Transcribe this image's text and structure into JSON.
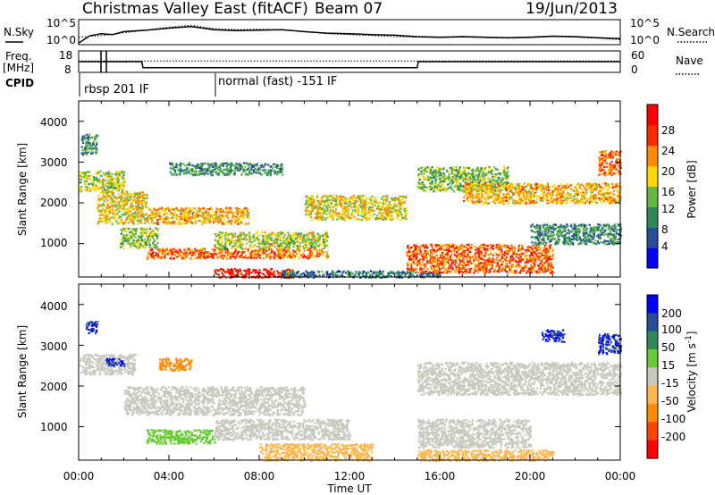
{
  "header": {
    "station": "Christmas Valley East (fitACF)",
    "beam": "Beam 07",
    "date": "19/Jun/2013"
  },
  "top_panels": {
    "nsky_label": "N.Sky",
    "nsearch_label": "N.Search",
    "noise_ticks_left": [
      "10^5",
      "10^0"
    ],
    "noise_ticks_right": [
      "10^5",
      "10^0"
    ],
    "freq_label_1": "Freq.",
    "freq_label_2": "[MHz]",
    "freq_ticks": [
      "18",
      "8"
    ],
    "nave_label": "Nave",
    "nave_ticks": [
      "60",
      "0"
    ],
    "cpid_label": "CPID",
    "cpid_entries": [
      "rbsp 201 IF",
      "normal (fast) -151 IF"
    ]
  },
  "colors": {
    "white": "#ffffff",
    "black": "#000000"
  },
  "chart_data": [
    {
      "type": "line",
      "title": "",
      "series": [
        {
          "name": "N.Sky",
          "x": [
            0,
            0.5,
            1,
            1.5,
            2,
            3,
            4,
            5,
            6,
            7,
            8,
            9,
            10,
            11,
            12,
            13,
            14,
            15,
            16,
            17,
            18,
            19,
            20,
            21,
            22,
            23,
            24
          ],
          "values": [
            0.3,
            1.8,
            2.2,
            2.0,
            2.6,
            2.9,
            3.3,
            3.6,
            3.0,
            2.8,
            2.9,
            3.0,
            2.6,
            2.3,
            2.2,
            2.0,
            1.9,
            1.6,
            1.5,
            1.6,
            1.5,
            1.4,
            1.5,
            1.7,
            1.6,
            1.4,
            1.2
          ]
        },
        {
          "name": "N.Search",
          "x": [
            0,
            1,
            2,
            3,
            4,
            5,
            6,
            7,
            8,
            9,
            10,
            11,
            12,
            13,
            14,
            15,
            16,
            17,
            18,
            19,
            20,
            21,
            22,
            23,
            24
          ],
          "values": [
            1.5,
            1.8,
            2.4,
            2.9,
            3.5,
            3.9,
            3.2,
            3.0,
            3.1,
            3.0,
            2.6,
            2.2,
            2.0,
            1.8,
            1.6,
            1.5,
            1.4,
            1.5,
            1.4,
            1.3,
            1.4,
            1.6,
            1.5,
            1.3,
            1.0
          ]
        }
      ]
    },
    {
      "type": "line",
      "title": "",
      "series": [
        {
          "name": "Freq.",
          "x": [
            0,
            2.8,
            2.85,
            15.0,
            15.05,
            24
          ],
          "values": [
            13,
            13,
            10.2,
            10.2,
            13,
            13
          ]
        },
        {
          "name": "Nave",
          "x": [
            0,
            24
          ],
          "values": [
            32,
            32
          ]
        }
      ]
    },
    {
      "type": "heatmap",
      "title": "",
      "xlabel": "Time UT",
      "ylabel": "Slant Range [km]",
      "xlim": [
        0,
        24
      ],
      "ylim": [
        180,
        4500
      ],
      "x_ticks": [
        "00:00",
        "04:00",
        "08:00",
        "12:00",
        "16:00",
        "20:00",
        "00:00"
      ],
      "y_ticks": [
        "1000",
        "2000",
        "3000",
        "4000"
      ],
      "colorbar": {
        "label": "Power [dB]",
        "ticks": [
          "4",
          "8",
          "12",
          "16",
          "20",
          "24",
          "28"
        ],
        "colors": [
          "#0000ff",
          "#264e96",
          "#2e8b57",
          "#66b844",
          "#ffd700",
          "#ff8c00",
          "#ff2a00",
          "#ff0000"
        ]
      },
      "bands": [
        {
          "t0": 0.1,
          "t1": 0.8,
          "r0": 3200,
          "r1": 3700,
          "v": 10
        },
        {
          "t0": 0.0,
          "t1": 2.0,
          "r0": 2300,
          "r1": 2800,
          "v": 16
        },
        {
          "t0": 0.8,
          "t1": 3.0,
          "r0": 1500,
          "r1": 2300,
          "v": 18
        },
        {
          "t0": 1.8,
          "t1": 3.5,
          "r0": 900,
          "r1": 1400,
          "v": 14
        },
        {
          "t0": 3.0,
          "t1": 7.5,
          "r0": 1500,
          "r1": 1900,
          "v": 20
        },
        {
          "t0": 4.0,
          "t1": 9.0,
          "r0": 2700,
          "r1": 3000,
          "v": 10
        },
        {
          "t0": 3.0,
          "t1": 11.0,
          "r0": 650,
          "r1": 900,
          "v": 24
        },
        {
          "t0": 6.0,
          "t1": 11.0,
          "r0": 900,
          "r1": 1300,
          "v": 16
        },
        {
          "t0": 6.0,
          "t1": 9.5,
          "r0": 180,
          "r1": 400,
          "v": 28
        },
        {
          "t0": 10.0,
          "t1": 14.5,
          "r0": 1600,
          "r1": 2200,
          "v": 18
        },
        {
          "t0": 9.0,
          "t1": 16.0,
          "r0": 180,
          "r1": 350,
          "v": 8
        },
        {
          "t0": 14.5,
          "t1": 21.0,
          "r0": 300,
          "r1": 1000,
          "v": 24
        },
        {
          "t0": 15.0,
          "t1": 19.0,
          "r0": 2300,
          "r1": 2900,
          "v": 14
        },
        {
          "t0": 17.0,
          "t1": 24.0,
          "r0": 2000,
          "r1": 2500,
          "v": 20
        },
        {
          "t0": 20.0,
          "t1": 24.0,
          "r0": 1000,
          "r1": 1500,
          "v": 10
        },
        {
          "t0": 23.0,
          "t1": 24.0,
          "r0": 2700,
          "r1": 3300,
          "v": 24
        }
      ]
    },
    {
      "type": "heatmap",
      "title": "",
      "xlabel": "Time UT",
      "ylabel": "Slant Range [km]",
      "xlim": [
        0,
        24
      ],
      "ylim": [
        180,
        4500
      ],
      "x_ticks": [
        "00:00",
        "04:00",
        "08:00",
        "12:00",
        "16:00",
        "20:00",
        "00:00"
      ],
      "y_ticks": [
        "1000",
        "2000",
        "3000",
        "4000"
      ],
      "colorbar": {
        "label": "Velocity [m s^-1]",
        "ticks": [
          "200",
          "100",
          "50",
          "15",
          "-15",
          "-50",
          "-100",
          "-200"
        ],
        "colors": [
          "#0000ff",
          "#264e96",
          "#2e8b57",
          "#66cc33",
          "#c8c8be",
          "#ffb74d",
          "#ff8c00",
          "#ff4500",
          "#ff0000"
        ]
      },
      "bands": [
        {
          "t0": 0.3,
          "t1": 0.8,
          "r0": 3300,
          "r1": 3600,
          "v": 200
        },
        {
          "t0": 0.0,
          "t1": 2.5,
          "r0": 2300,
          "r1": 2800,
          "v": 0
        },
        {
          "t0": 1.2,
          "t1": 2.0,
          "r0": 2500,
          "r1": 2700,
          "v": 200
        },
        {
          "t0": 3.5,
          "t1": 5.0,
          "r0": 2400,
          "r1": 2700,
          "v": -80
        },
        {
          "t0": 2.0,
          "t1": 10.0,
          "r0": 1300,
          "r1": 2000,
          "v": 0
        },
        {
          "t0": 3.0,
          "t1": 6.0,
          "r0": 600,
          "r1": 950,
          "v": 30
        },
        {
          "t0": 6.0,
          "t1": 12.0,
          "r0": 700,
          "r1": 1200,
          "v": 0
        },
        {
          "t0": 8.0,
          "t1": 13.0,
          "r0": 180,
          "r1": 600,
          "v": -40
        },
        {
          "t0": 15.0,
          "t1": 24.0,
          "r0": 1800,
          "r1": 2600,
          "v": 0
        },
        {
          "t0": 15.0,
          "t1": 21.0,
          "r0": 180,
          "r1": 450,
          "v": -40
        },
        {
          "t0": 15.0,
          "t1": 20.0,
          "r0": 500,
          "r1": 1200,
          "v": 0
        },
        {
          "t0": 20.5,
          "t1": 21.5,
          "r0": 3100,
          "r1": 3400,
          "v": 200
        },
        {
          "t0": 23.0,
          "t1": 24.0,
          "r0": 2800,
          "r1": 3300,
          "v": 200
        }
      ]
    }
  ]
}
